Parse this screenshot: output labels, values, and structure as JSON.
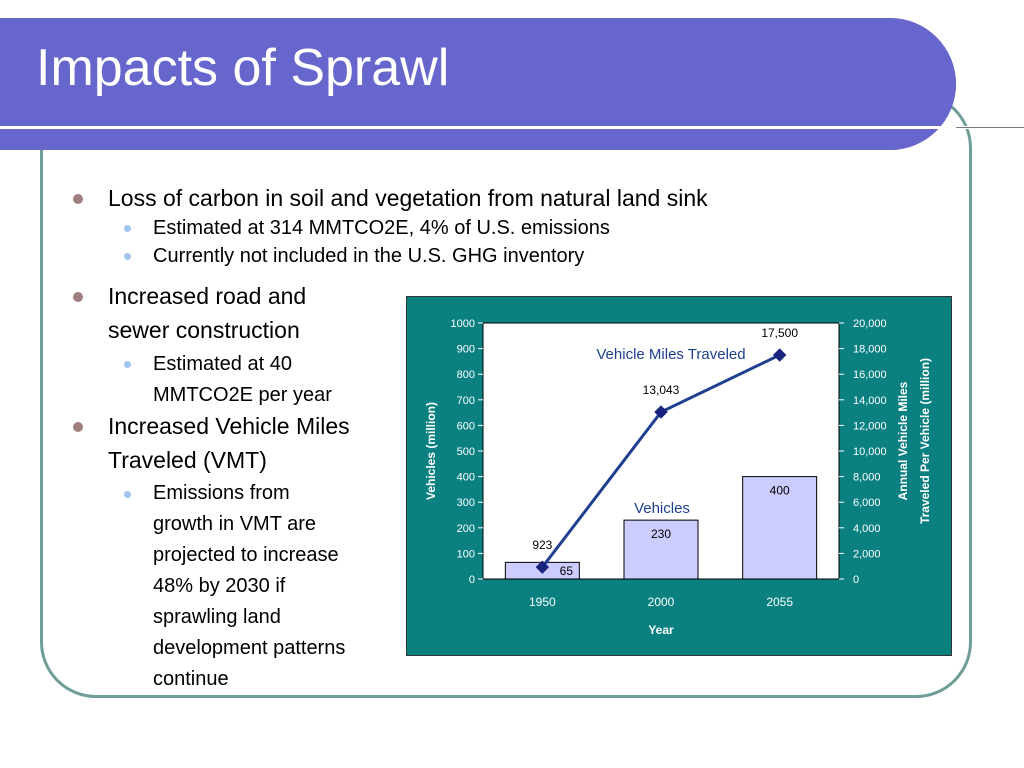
{
  "slide": {
    "title": "Impacts of Sprawl"
  },
  "bullets": [
    {
      "text": "Loss of carbon in soil and vegetation from natural land sink",
      "sub": [
        "Estimated at 314 MMTCO2E, 4% of U.S. emissions",
        "Currently not included in the U.S. GHG inventory"
      ]
    },
    {
      "lines": [
        "Increased road and",
        "sewer construction"
      ],
      "sub_lines": [
        "Estimated at 40",
        "MMTCO2E per year"
      ]
    },
    {
      "lines": [
        "Increased Vehicle Miles",
        "Traveled (VMT)"
      ],
      "sub_lines": [
        "Emissions from",
        "growth in VMT are",
        "projected to increase",
        "48% by 2030 if",
        "sprawling land",
        "development patterns",
        "continue"
      ]
    }
  ],
  "colors": {
    "title_bar": "#6666cc",
    "frame": "#6f9e99",
    "chart_panel": "#0a8080",
    "bar_fill": "#ccccff",
    "line": "#1f3f8f",
    "marker": "#1a237e"
  },
  "chart_data": {
    "type": "bar+line",
    "categories": [
      "1950",
      "2000",
      "2055"
    ],
    "xlabel": "Year",
    "ylabel_left": "Vehicles (million)",
    "ylabel_right": "Annual Vehicle Miles Traveled Per Vehicle (million)",
    "ylabel_right_lines": [
      "Annual Vehicle Miles",
      "Traveled Per Vehicle (million)"
    ],
    "ylim_left": [
      0,
      1000
    ],
    "ylim_right": [
      0,
      20000
    ],
    "yticks_left": [
      "0",
      "100",
      "200",
      "300",
      "400",
      "500",
      "600",
      "700",
      "800",
      "900",
      "1000"
    ],
    "yticks_right": [
      "0",
      "2,000",
      "4,000",
      "6,000",
      "8,000",
      "10,000",
      "12,000",
      "14,000",
      "16,000",
      "18,000",
      "20,000"
    ],
    "series": [
      {
        "name": "Vehicles",
        "kind": "bar",
        "axis": "left",
        "values": [
          65,
          230,
          400
        ],
        "labels": [
          "65",
          "230",
          "400"
        ]
      },
      {
        "name": "Vehicle Miles Traveled",
        "kind": "line",
        "axis": "right",
        "values": [
          923,
          13043,
          17500
        ],
        "labels": [
          "923",
          "13,043",
          "17,500"
        ]
      }
    ],
    "grid": false,
    "legend": "inline labels"
  }
}
